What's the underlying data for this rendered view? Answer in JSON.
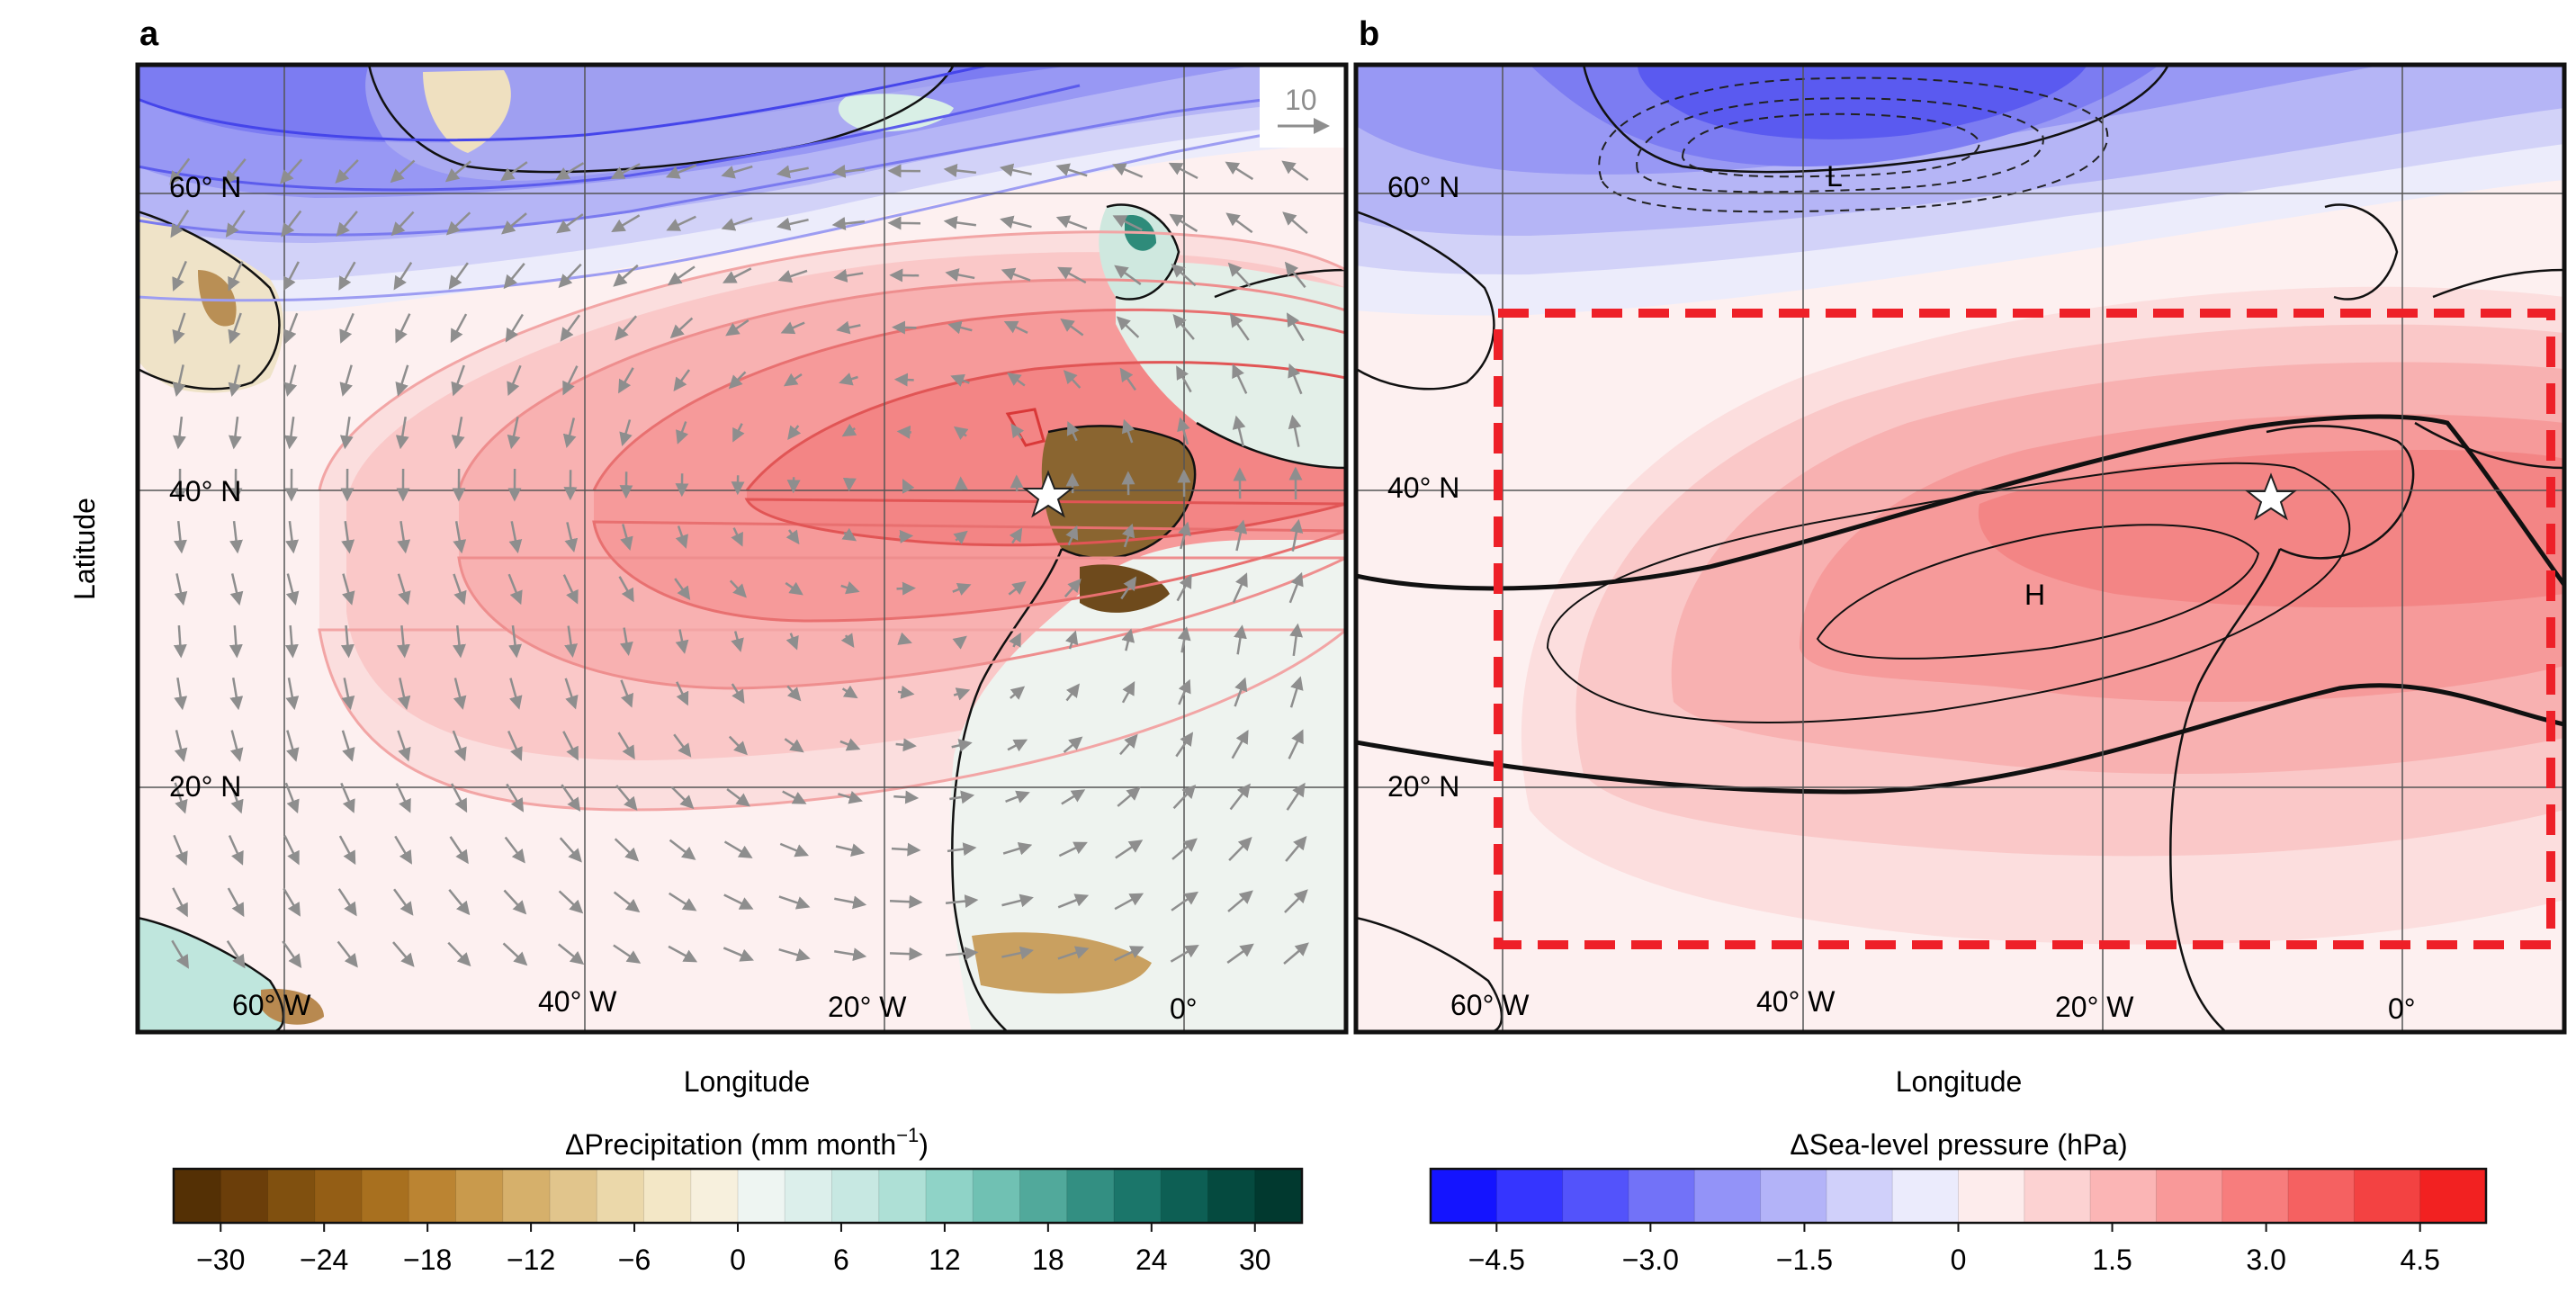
{
  "panels": [
    {
      "id": "a",
      "label": "a",
      "xlabel": "Longitude",
      "ylabel": "Latitude",
      "lat_ticks": [
        "60° N",
        "40° N",
        "20° N"
      ],
      "lon_ticks": [
        "60° W",
        "40° W",
        "20° W",
        "0°"
      ],
      "reference_vector_label": "10"
    },
    {
      "id": "b",
      "label": "b",
      "xlabel": "Longitude",
      "lat_ticks": [
        "60° N",
        "40° N",
        "20° N"
      ],
      "lon_ticks": [
        "60° W",
        "40° W",
        "20° W",
        "0°"
      ],
      "low_label": "L",
      "high_label": "H"
    }
  ],
  "colorbars": [
    {
      "id": "precip",
      "title_main": "ΔPrecipitation (mm month",
      "title_sup": "−1",
      "title_end": ")",
      "ticks": [
        "−30",
        "−24",
        "−18",
        "−12",
        "−6",
        "0",
        "6",
        "12",
        "18",
        "24",
        "30"
      ],
      "colors": [
        "#543005",
        "#6b3e0a",
        "#80500f",
        "#945e15",
        "#a8701f",
        "#bb8432",
        "#c99a4c",
        "#d6b06b",
        "#e1c58c",
        "#ebd8aa",
        "#f3e7c6",
        "#f7f0dd",
        "#eef5f2",
        "#dcefeb",
        "#c7e8e2",
        "#aee0d6",
        "#8fd3c7",
        "#70c1b3",
        "#51a99b",
        "#338f82",
        "#1b766a",
        "#0d5f54",
        "#054a3f",
        "#01392f"
      ]
    },
    {
      "id": "slp",
      "title": "ΔSea-level pressure (hPa)",
      "ticks": [
        "−4.5",
        "−3.0",
        "−1.5",
        "0",
        "1.5",
        "3.0",
        "4.5"
      ],
      "colors": [
        "#1414ff",
        "#3535ff",
        "#5353fb",
        "#7272f8",
        "#9393f8",
        "#b3b3f8",
        "#d0d0fa",
        "#ebebfc",
        "#fdecec",
        "#fcd2d2",
        "#fbb5b5",
        "#f99999",
        "#f77d7d",
        "#f56161",
        "#f34242",
        "#f22121"
      ]
    }
  ],
  "map_colors": {
    "low": "#5b5bf0",
    "high": "#f07878",
    "ocean_background": "#fdf0f0",
    "study_region_box": "#ee2028",
    "site_marker": "star"
  }
}
